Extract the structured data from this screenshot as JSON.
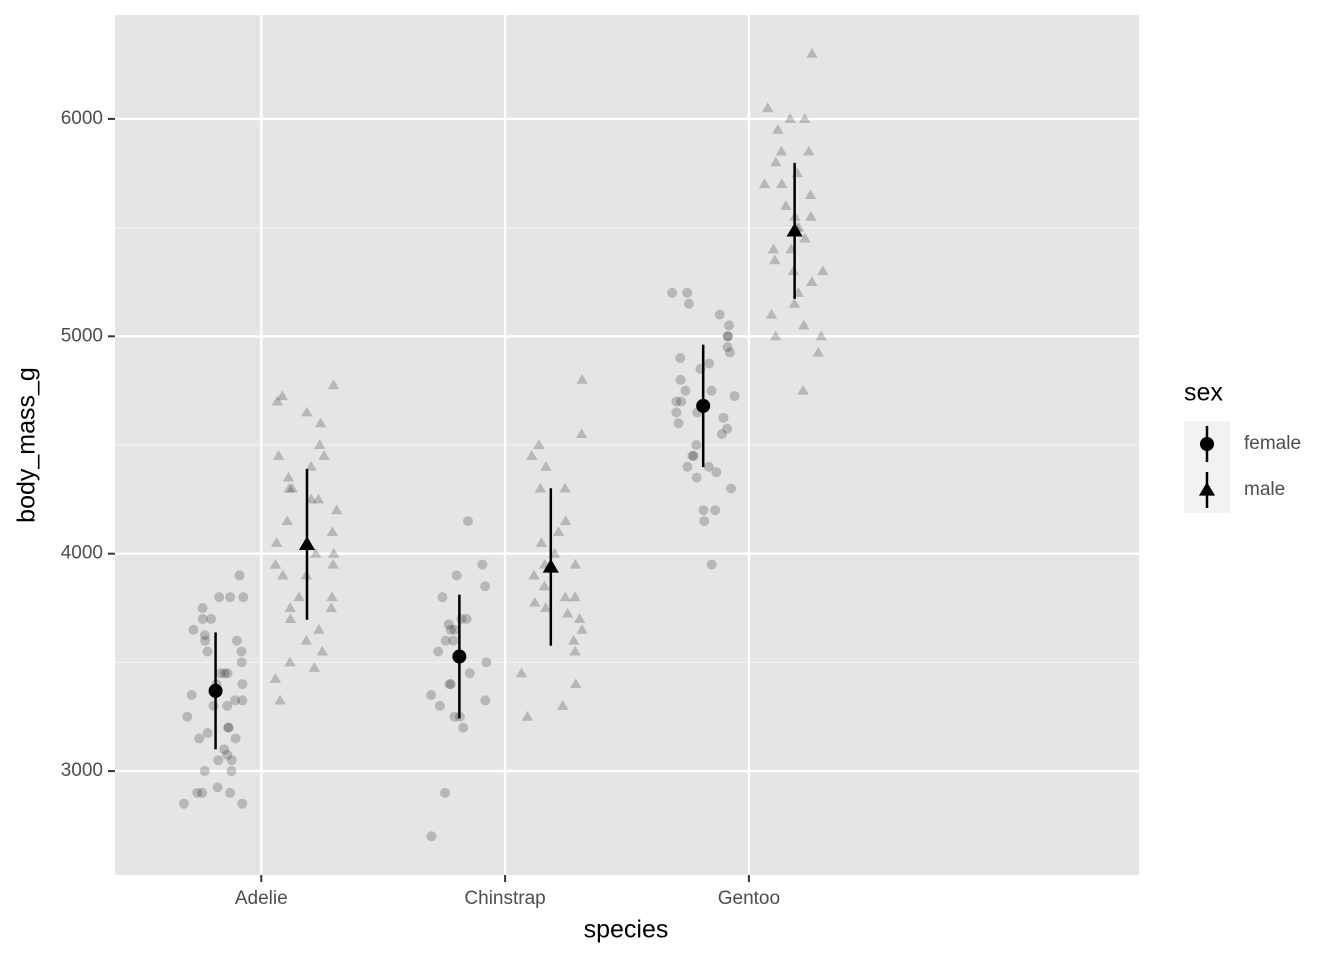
{
  "chart_data": {
    "type": "pointrange_jitter",
    "x_label": "species",
    "y_label": "body_mass_g",
    "categories": [
      "Adelie",
      "Chinstrap",
      "Gentoo"
    ],
    "ylim": [
      2522,
      6478
    ],
    "yticks": [
      3000,
      4000,
      5000,
      6000
    ],
    "grid": true,
    "legend_title": "sex",
    "legend_position": "right",
    "series": [
      {
        "name": "female",
        "shape": "circle",
        "color": "#000000",
        "values": [
          3369,
          3527,
          4680
        ],
        "errors": [
          269,
          285,
          282
        ],
        "points": [
          [
            2850,
            2850,
            2900,
            2900,
            2900,
            2925,
            3000,
            3000,
            3050,
            3050,
            3075,
            3100,
            3150,
            3150,
            3175,
            3200,
            3200,
            3250,
            3300,
            3300,
            3325,
            3325,
            3350,
            3400,
            3400,
            3450,
            3450,
            3450,
            3500,
            3550,
            3550,
            3600,
            3600,
            3625,
            3650,
            3700,
            3700,
            3750,
            3800,
            3800,
            3800,
            3900
          ],
          [
            2700,
            2900,
            3200,
            3250,
            3250,
            3300,
            3325,
            3350,
            3400,
            3400,
            3450,
            3500,
            3525,
            3550,
            3600,
            3600,
            3650,
            3650,
            3675,
            3700,
            3700,
            3800,
            3850,
            3900,
            3950,
            4150
          ],
          [
            3950,
            4150,
            4200,
            4200,
            4300,
            4350,
            4375,
            4400,
            4400,
            4450,
            4450,
            4500,
            4550,
            4575,
            4600,
            4625,
            4650,
            4650,
            4700,
            4700,
            4725,
            4750,
            4750,
            4800,
            4850,
            4875,
            4900,
            4925,
            4950,
            5000,
            5000,
            5050,
            5100,
            5150,
            5200,
            5200
          ]
        ]
      },
      {
        "name": "male",
        "shape": "triangle",
        "color": "#000000",
        "values": [
          4043,
          3939,
          5485
        ],
        "errors": [
          347,
          362,
          313
        ],
        "points": [
          [
            3325,
            3425,
            3475,
            3500,
            3550,
            3600,
            3650,
            3700,
            3750,
            3750,
            3800,
            3800,
            3900,
            3900,
            3950,
            3950,
            4000,
            4000,
            4050,
            4100,
            4150,
            4200,
            4250,
            4250,
            4300,
            4300,
            4350,
            4400,
            4450,
            4450,
            4500,
            4600,
            4650,
            4700,
            4725,
            4775
          ],
          [
            3250,
            3300,
            3400,
            3450,
            3550,
            3600,
            3650,
            3700,
            3725,
            3750,
            3775,
            3800,
            3800,
            3850,
            3900,
            3950,
            3950,
            4000,
            4050,
            4100,
            4150,
            4300,
            4300,
            4400,
            4450,
            4500,
            4550,
            4800
          ],
          [
            4750,
            4925,
            5000,
            5000,
            5050,
            5100,
            5150,
            5200,
            5250,
            5300,
            5300,
            5350,
            5400,
            5400,
            5450,
            5500,
            5500,
            5550,
            5550,
            5600,
            5650,
            5700,
            5700,
            5750,
            5800,
            5850,
            5850,
            5950,
            6000,
            6000,
            6050,
            6300
          ]
        ]
      }
    ]
  }
}
